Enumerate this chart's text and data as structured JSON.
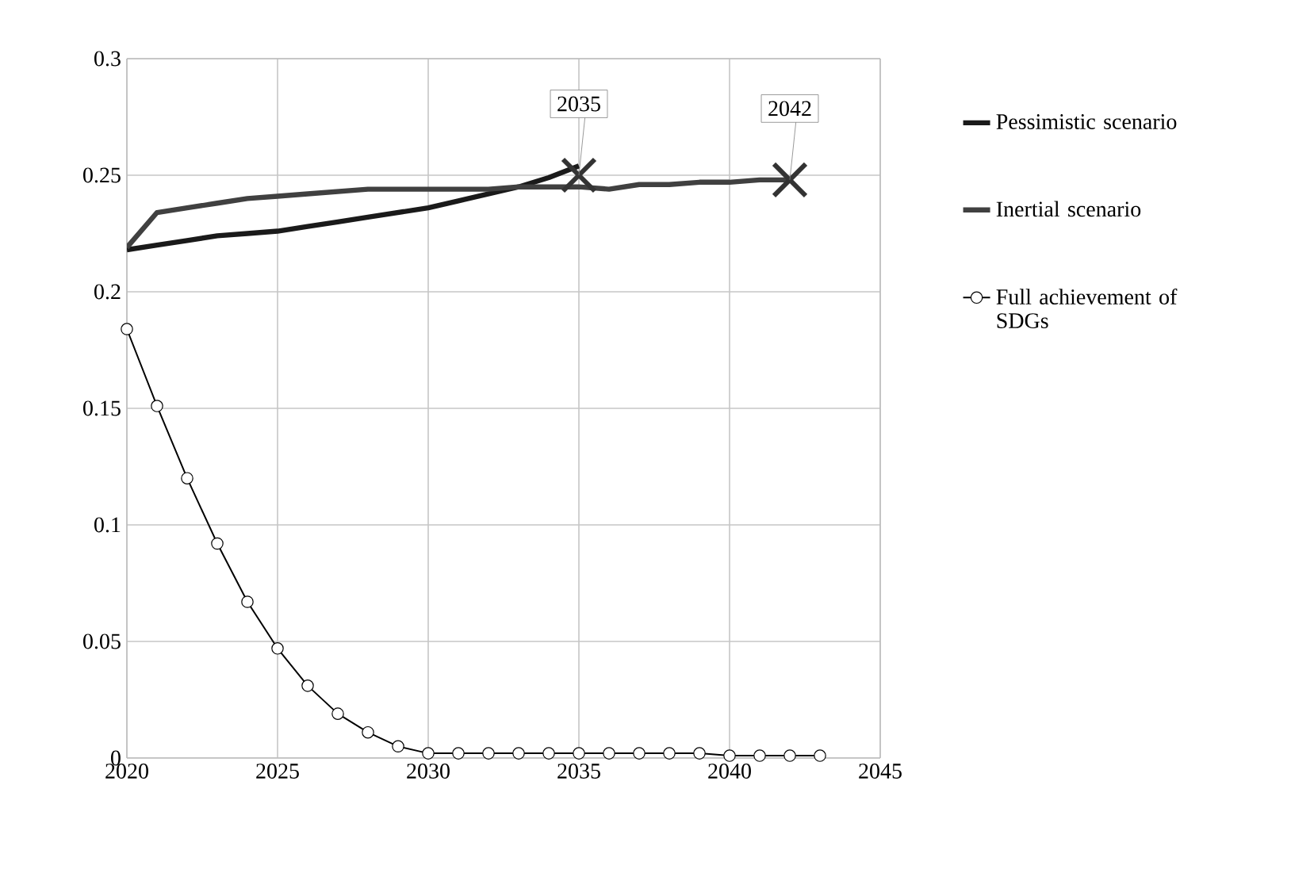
{
  "chart_data": {
    "type": "line",
    "x": [
      2020,
      2021,
      2022,
      2023,
      2024,
      2025,
      2026,
      2027,
      2028,
      2029,
      2030,
      2031,
      2032,
      2033,
      2034,
      2035,
      2036,
      2037,
      2038,
      2039,
      2040,
      2041,
      2042,
      2043
    ],
    "series": [
      {
        "name": "Pessimistic scenario",
        "color": "#1a1a1a",
        "marker": "none",
        "x": [
          2020,
          2021,
          2022,
          2023,
          2024,
          2025,
          2026,
          2027,
          2028,
          2029,
          2030,
          2031,
          2032,
          2033,
          2034,
          2035
        ],
        "values": [
          0.218,
          0.22,
          0.222,
          0.224,
          0.225,
          0.226,
          0.228,
          0.23,
          0.232,
          0.234,
          0.236,
          0.239,
          0.242,
          0.245,
          0.249,
          0.254
        ]
      },
      {
        "name": "Inertial scenario",
        "color": "#404040",
        "marker": "none",
        "x": [
          2020,
          2021,
          2022,
          2023,
          2024,
          2025,
          2026,
          2027,
          2028,
          2029,
          2030,
          2031,
          2032,
          2033,
          2034,
          2035,
          2036,
          2037,
          2038,
          2039,
          2040,
          2041,
          2042
        ],
        "values": [
          0.219,
          0.234,
          0.236,
          0.238,
          0.24,
          0.241,
          0.242,
          0.243,
          0.244,
          0.244,
          0.244,
          0.244,
          0.244,
          0.245,
          0.245,
          0.245,
          0.244,
          0.246,
          0.246,
          0.247,
          0.247,
          0.248,
          0.248
        ]
      },
      {
        "name": "Full achievement of SDGs",
        "color": "#000000",
        "marker": "circle",
        "values": [
          0.184,
          0.151,
          0.12,
          0.092,
          0.067,
          0.047,
          0.031,
          0.019,
          0.011,
          0.005,
          0.002,
          0.002,
          0.002,
          0.002,
          0.002,
          0.002,
          0.002,
          0.002,
          0.002,
          0.002,
          0.001,
          0.001,
          0.001,
          0.001
        ]
      }
    ],
    "annotations": [
      {
        "text": "2035",
        "x": 2035,
        "y": 0.25
      },
      {
        "text": "2042",
        "x": 2042,
        "y": 0.248
      }
    ],
    "xlim": [
      2020,
      2045
    ],
    "xticks": [
      2020,
      2025,
      2030,
      2035,
      2040,
      2045
    ],
    "ylim": [
      0,
      0.3
    ],
    "yticks": [
      0,
      0.05,
      0.1,
      0.15,
      0.2,
      0.25,
      0.3
    ],
    "grid": true,
    "legend": "right"
  }
}
